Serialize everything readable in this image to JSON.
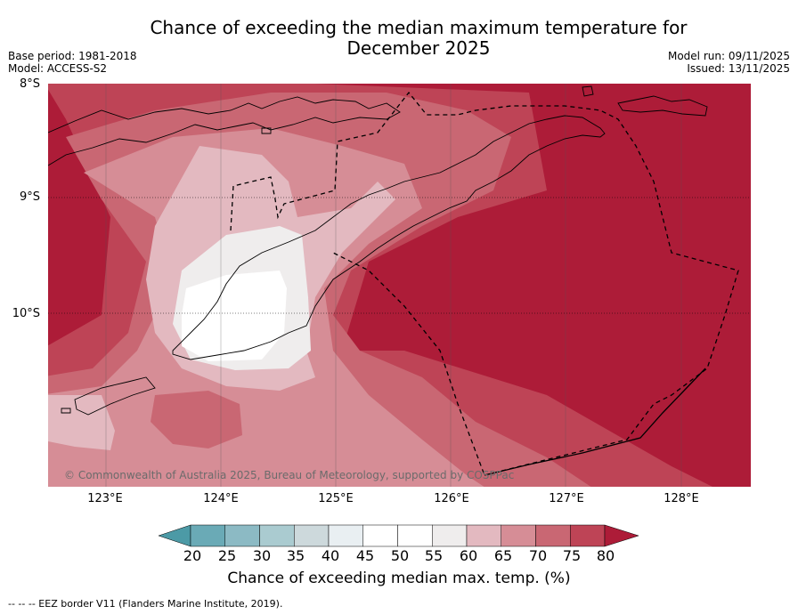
{
  "title": {
    "line1": "Chance of exceeding the median maximum temperature for",
    "line2": "December 2025"
  },
  "meta": {
    "base_period": "Base period: 1981-2018",
    "model": "Model: ACCESS-S2",
    "model_run": "Model run: 09/11/2025",
    "issued": "Issued: 13/11/2025"
  },
  "map": {
    "lat_labels": [
      "8°S",
      "9°S",
      "10°S"
    ],
    "lon_labels": [
      "123°E",
      "124°E",
      "125°E",
      "126°E",
      "127°E",
      "128°E"
    ],
    "copyright": "© Commonwealth of Australia 2025, Bureau of Meteorology, supported by COSPPac"
  },
  "legend": {
    "ticks": [
      "20",
      "25",
      "30",
      "35",
      "40",
      "45",
      "50",
      "55",
      "60",
      "65",
      "70",
      "75",
      "80"
    ],
    "label": "Chance of exceeding median max. temp. (%)",
    "bins": [
      {
        "range": "<20",
        "color": "#4c9aa6"
      },
      {
        "range": "20-25",
        "color": "#6aaab6"
      },
      {
        "range": "25-30",
        "color": "#8cbac4"
      },
      {
        "range": "30-35",
        "color": "#aacbd0"
      },
      {
        "range": "35-40",
        "color": "#cdd9dc"
      },
      {
        "range": "40-45",
        "color": "#e9eff2"
      },
      {
        "range": "45-50",
        "color": "#ffffff"
      },
      {
        "range": "50-55",
        "color": "#ffffff"
      },
      {
        "range": "55-60",
        "color": "#efeded"
      },
      {
        "range": "60-65",
        "color": "#e3b9c0"
      },
      {
        "range": "65-70",
        "color": "#d68d96"
      },
      {
        "range": "70-75",
        "color": "#c96773"
      },
      {
        "range": "75-80",
        "color": "#be4456"
      },
      {
        "range": ">80",
        "color": "#ad1c38"
      }
    ]
  },
  "eez_note": "-- -- -- EEZ border V11 (Flanders Marine Institute, 2019)."
}
